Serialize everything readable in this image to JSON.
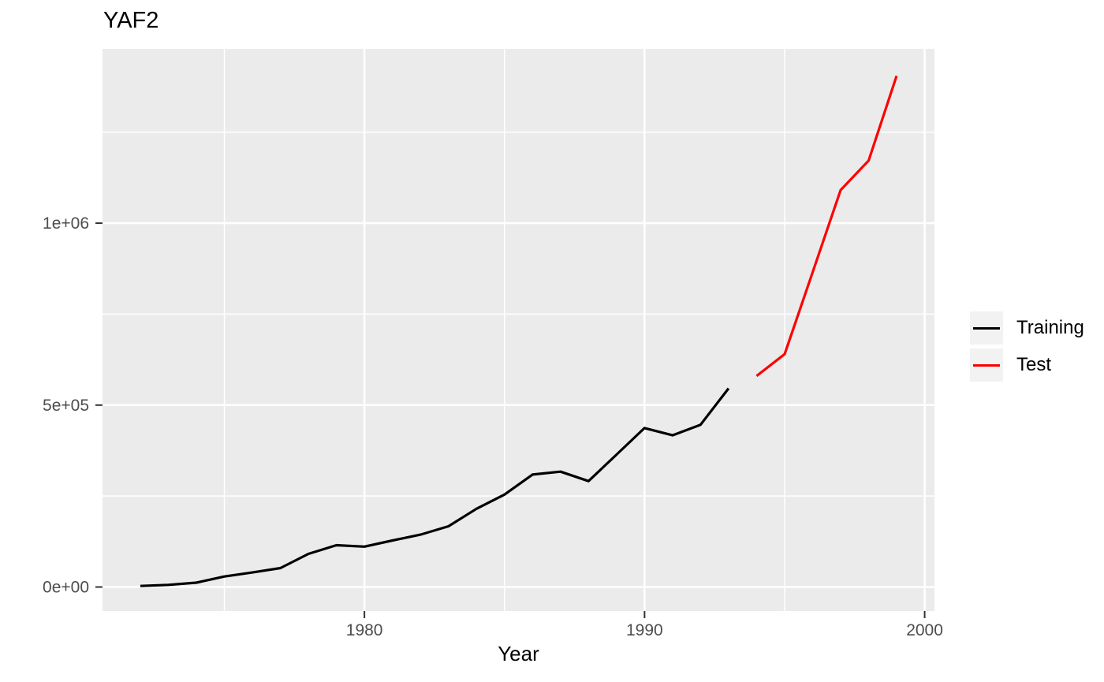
{
  "chart_data": {
    "type": "line",
    "title": "YAF2",
    "xlabel": "Year",
    "ylabel": "",
    "grid": true,
    "legend_position": "right",
    "colors": {
      "panel_bg": "#EBEBEB",
      "grid": "#FFFFFF",
      "axis_text": "#4D4D4D",
      "tick": "#333333",
      "legend_key_bg": "#F2F2F2"
    },
    "x_axis": {
      "lim": [
        1970.65,
        2000.35
      ],
      "major_ticks": [
        1980,
        1990,
        2000
      ],
      "major_labels": [
        "1980",
        "1990",
        "2000"
      ],
      "minor_ticks": [
        1975,
        1985,
        1995
      ]
    },
    "y_axis": {
      "lim": [
        -66000,
        1479000
      ],
      "major_ticks": [
        0,
        500000,
        1000000
      ],
      "major_labels": [
        "0e+00",
        "5e+05",
        "1e+06"
      ],
      "minor_ticks": [
        250000,
        750000,
        1250000
      ]
    },
    "series": [
      {
        "name": "Training",
        "color": "#000000",
        "x": [
          1972,
          1973,
          1974,
          1975,
          1976,
          1977,
          1978,
          1979,
          1980,
          1981,
          1982,
          1983,
          1984,
          1985,
          1986,
          1987,
          1988,
          1989,
          1990,
          1991,
          1992,
          1993
        ],
        "values": [
          3000,
          6000,
          12000,
          29000,
          40000,
          52000,
          91000,
          115000,
          111000,
          128000,
          144000,
          167000,
          215000,
          254000,
          309000,
          317000,
          291000,
          364000,
          437000,
          417000,
          446000,
          546000
        ]
      },
      {
        "name": "Test",
        "color": "#FF0000",
        "x": [
          1994,
          1995,
          1996,
          1997,
          1998,
          1999
        ],
        "values": [
          580000,
          640000,
          865000,
          1091000,
          1172000,
          1405000
        ]
      }
    ]
  }
}
